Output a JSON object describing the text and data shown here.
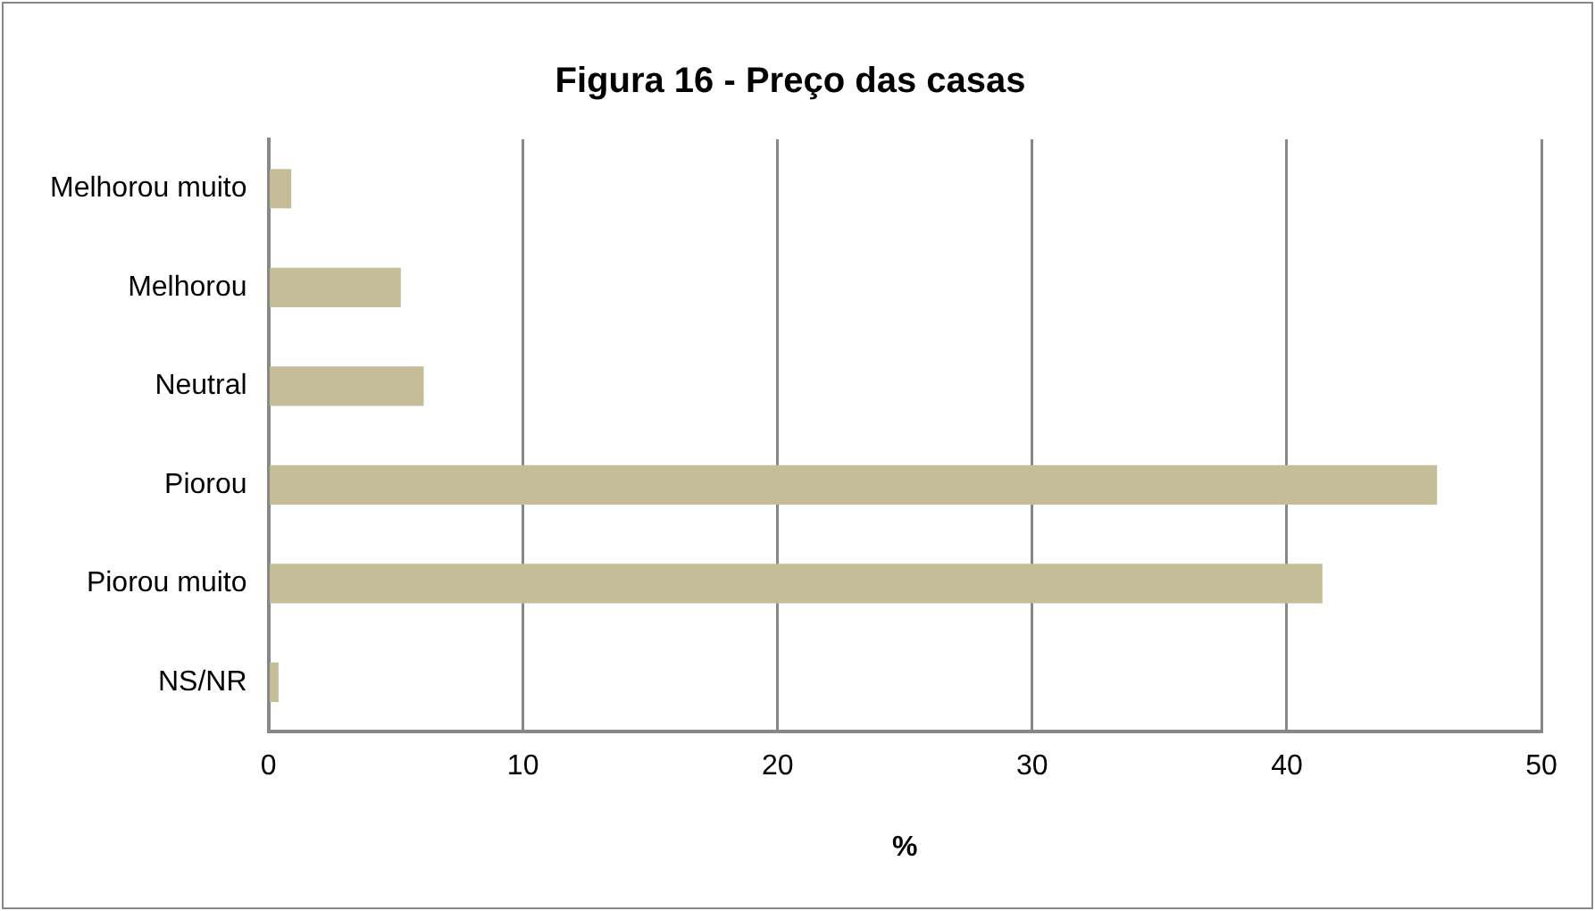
{
  "chart_data": {
    "type": "bar",
    "orientation": "horizontal",
    "title": "Figura 16 - Preço das casas",
    "xlabel": "%",
    "categories": [
      "Melhorou muito",
      "Melhorou",
      "Neutral",
      "Piorou",
      "Piorou muito",
      "NS/NR"
    ],
    "values": [
      0.9,
      5.2,
      6.1,
      45.9,
      41.4,
      0.4
    ],
    "color": "#c4bd97",
    "xlim": [
      0,
      50
    ],
    "xticks": [
      0,
      10,
      20,
      30,
      40,
      50
    ],
    "grid": "x",
    "legend": false
  }
}
